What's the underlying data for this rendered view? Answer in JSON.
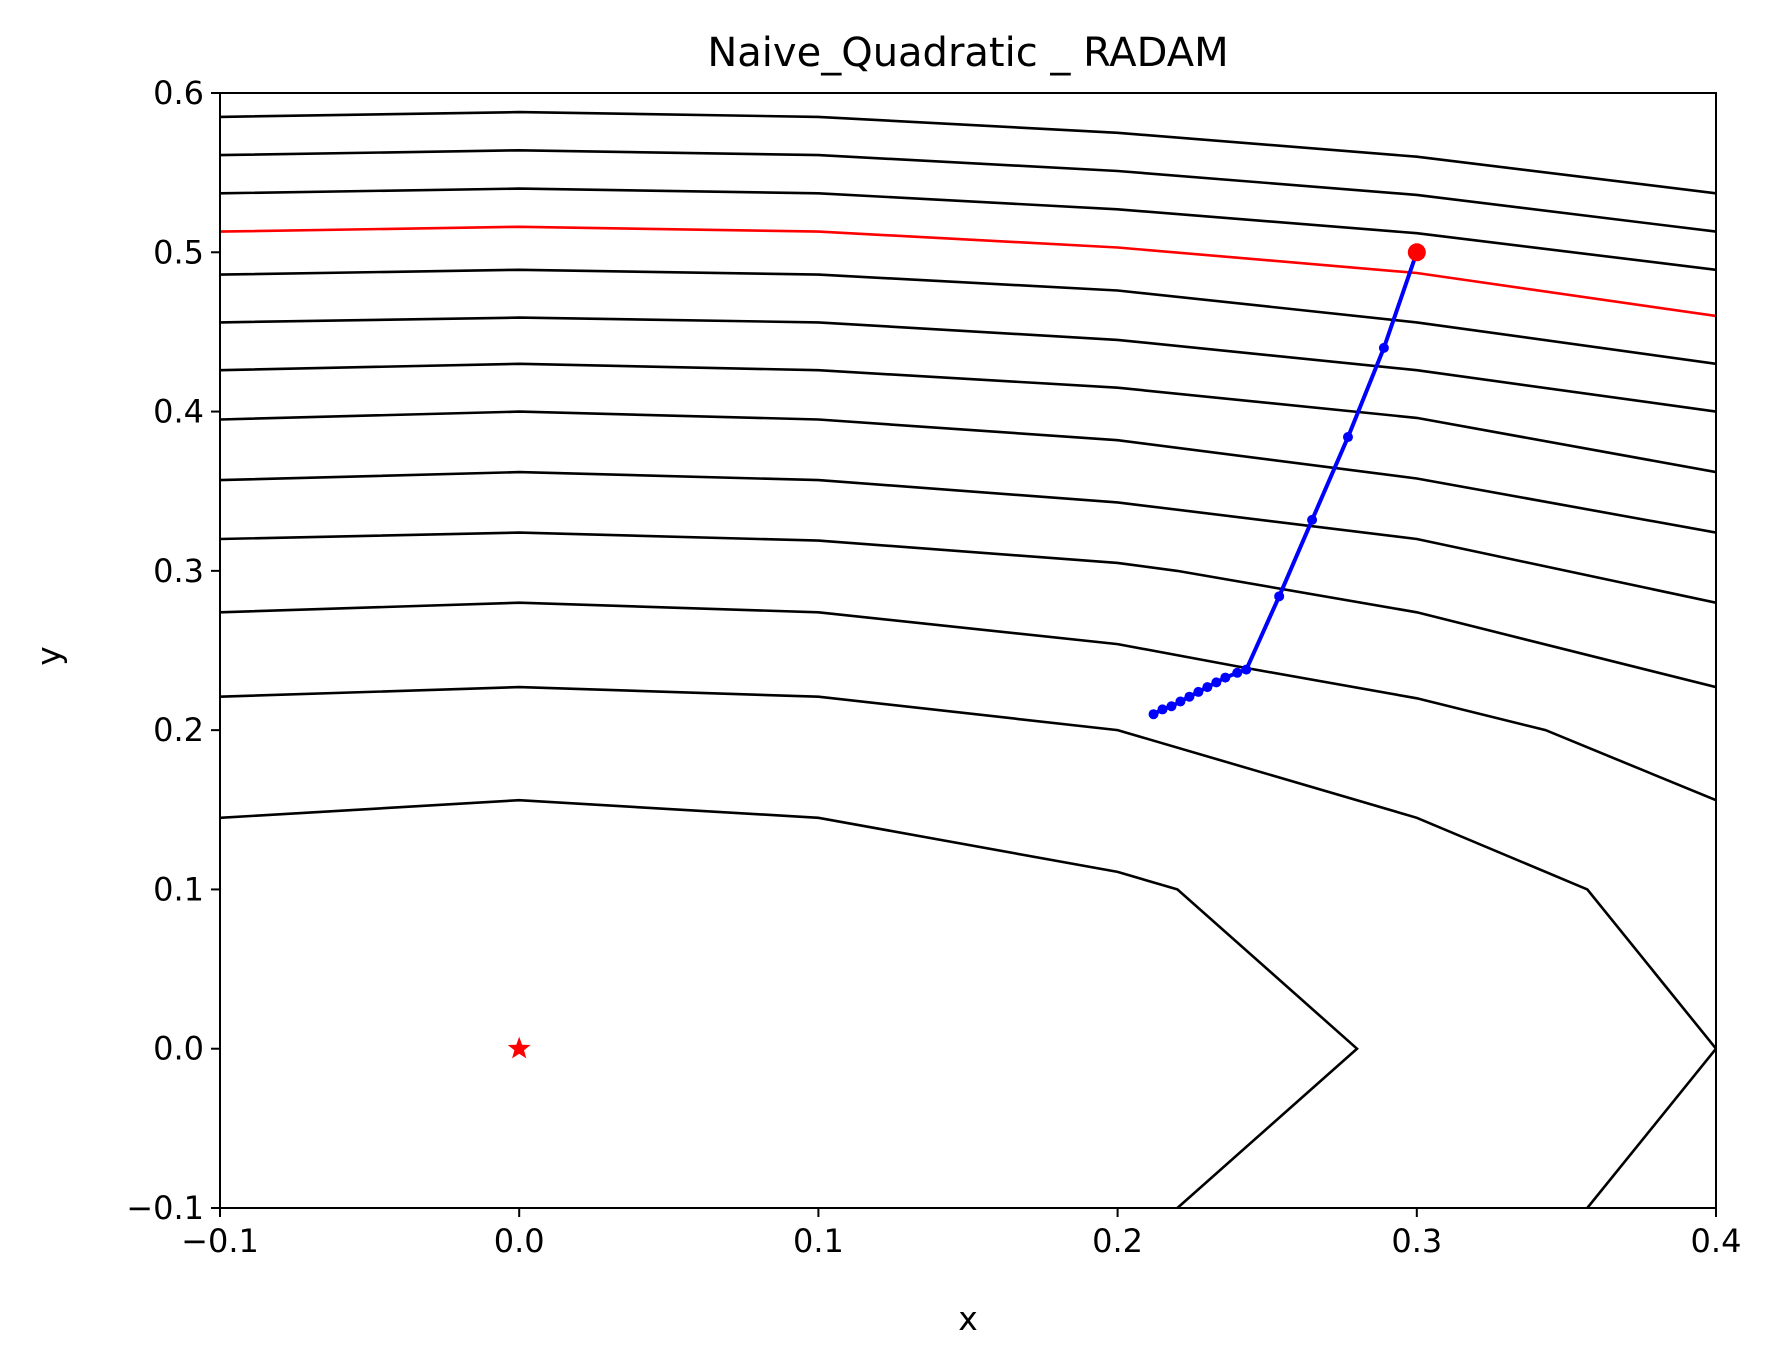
{
  "chart_data": {
    "type": "line",
    "title": "Naive_Quadratic _ RADAM",
    "xlabel": "x",
    "ylabel": "y",
    "xlim": [
      -0.1,
      0.4
    ],
    "ylim": [
      -0.1,
      0.6
    ],
    "x_ticks": [
      -0.1,
      0.0,
      0.1,
      0.2,
      0.3,
      0.4
    ],
    "y_ticks": [
      -0.1,
      0.0,
      0.1,
      0.2,
      0.3,
      0.4,
      0.5,
      0.6
    ],
    "x_tick_labels": [
      "−0.1",
      "0.0",
      "0.1",
      "0.2",
      "0.3",
      "0.4"
    ],
    "y_tick_labels": [
      "−0.1",
      "0.0",
      "0.1",
      "0.2",
      "0.3",
      "0.4",
      "0.5",
      "0.6"
    ],
    "grid": false,
    "colors": {
      "contour": "#000000",
      "start_contour": "#ff0000",
      "path": "#0000ff",
      "start": "#ff0000",
      "optimum": "#ff0000"
    },
    "contours": [
      {
        "color": "black",
        "points": [
          [
            -0.1,
            0.585
          ],
          [
            0.0,
            0.588
          ],
          [
            0.1,
            0.585
          ],
          [
            0.2,
            0.575
          ],
          [
            0.3,
            0.56
          ],
          [
            0.4,
            0.537
          ]
        ]
      },
      {
        "color": "black",
        "points": [
          [
            -0.1,
            0.561
          ],
          [
            0.0,
            0.564
          ],
          [
            0.1,
            0.561
          ],
          [
            0.2,
            0.551
          ],
          [
            0.3,
            0.536
          ],
          [
            0.4,
            0.513
          ]
        ]
      },
      {
        "color": "black",
        "points": [
          [
            -0.1,
            0.537
          ],
          [
            0.0,
            0.54
          ],
          [
            0.1,
            0.537
          ],
          [
            0.2,
            0.527
          ],
          [
            0.3,
            0.512
          ],
          [
            0.4,
            0.489
          ]
        ]
      },
      {
        "color": "red",
        "points": [
          [
            -0.1,
            0.513
          ],
          [
            0.0,
            0.516
          ],
          [
            0.1,
            0.513
          ],
          [
            0.2,
            0.503
          ],
          [
            0.3,
            0.487
          ],
          [
            0.4,
            0.46
          ]
        ]
      },
      {
        "color": "black",
        "points": [
          [
            -0.1,
            0.486
          ],
          [
            0.0,
            0.489
          ],
          [
            0.1,
            0.486
          ],
          [
            0.2,
            0.476
          ],
          [
            0.3,
            0.456
          ],
          [
            0.4,
            0.43
          ]
        ]
      },
      {
        "color": "black",
        "points": [
          [
            -0.1,
            0.456
          ],
          [
            0.0,
            0.459
          ],
          [
            0.1,
            0.456
          ],
          [
            0.2,
            0.445
          ],
          [
            0.3,
            0.426
          ],
          [
            0.4,
            0.4
          ]
        ]
      },
      {
        "color": "black",
        "points": [
          [
            -0.1,
            0.426
          ],
          [
            0.0,
            0.43
          ],
          [
            0.1,
            0.426
          ],
          [
            0.2,
            0.415
          ],
          [
            0.3,
            0.396
          ],
          [
            0.4,
            0.362
          ]
        ]
      },
      {
        "color": "black",
        "points": [
          [
            -0.1,
            0.395
          ],
          [
            0.0,
            0.4
          ],
          [
            0.1,
            0.395
          ],
          [
            0.2,
            0.382
          ],
          [
            0.3,
            0.358
          ],
          [
            0.4,
            0.324
          ]
        ]
      },
      {
        "color": "black",
        "points": [
          [
            -0.1,
            0.357
          ],
          [
            0.0,
            0.362
          ],
          [
            0.1,
            0.357
          ],
          [
            0.2,
            0.343
          ],
          [
            0.3,
            0.32
          ],
          [
            0.4,
            0.28
          ]
        ]
      },
      {
        "color": "black",
        "points": [
          [
            -0.1,
            0.32
          ],
          [
            0.0,
            0.324
          ],
          [
            0.1,
            0.319
          ],
          [
            0.2,
            0.305
          ],
          [
            0.22,
            0.3
          ],
          [
            0.3,
            0.274
          ],
          [
            0.4,
            0.227
          ]
        ]
      },
      {
        "color": "black",
        "points": [
          [
            -0.1,
            0.274
          ],
          [
            0.0,
            0.28
          ],
          [
            0.1,
            0.274
          ],
          [
            0.2,
            0.254
          ],
          [
            0.24,
            0.24
          ],
          [
            0.3,
            0.22
          ],
          [
            0.343,
            0.2
          ],
          [
            0.4,
            0.156
          ]
        ]
      },
      {
        "color": "black",
        "points": [
          [
            -0.1,
            0.221
          ],
          [
            0.0,
            0.227
          ],
          [
            0.1,
            0.221
          ],
          [
            0.2,
            0.2
          ],
          [
            0.3,
            0.145
          ],
          [
            0.357,
            0.1
          ],
          [
            0.4,
            0.0
          ]
        ]
      },
      {
        "color": "black",
        "points": [
          [
            -0.1,
            0.145
          ],
          [
            0.0,
            0.156
          ],
          [
            0.1,
            0.145
          ],
          [
            0.2,
            0.111
          ],
          [
            0.22,
            0.1
          ],
          [
            0.28,
            0.0
          ],
          [
            0.22,
            -0.1
          ]
        ]
      },
      {
        "color": "black",
        "points": [
          [
            0.4,
            0.0
          ],
          [
            0.357,
            -0.1
          ]
        ]
      }
    ],
    "series": [
      {
        "type": "line",
        "color": "blue",
        "points": [
          [
            0.3,
            0.5
          ],
          [
            0.289,
            0.44
          ],
          [
            0.277,
            0.384
          ],
          [
            0.265,
            0.332
          ],
          [
            0.254,
            0.284
          ],
          [
            0.243,
            0.238
          ],
          [
            0.24,
            0.236
          ],
          [
            0.236,
            0.233
          ],
          [
            0.233,
            0.23
          ],
          [
            0.23,
            0.227
          ],
          [
            0.227,
            0.224
          ],
          [
            0.224,
            0.221
          ],
          [
            0.221,
            0.218
          ],
          [
            0.218,
            0.215
          ],
          [
            0.215,
            0.213
          ],
          [
            0.212,
            0.21
          ]
        ]
      }
    ],
    "markers": [
      {
        "name": "start-point",
        "shape": "circle",
        "color": "red",
        "x": 0.3,
        "y": 0.5
      },
      {
        "name": "optimum",
        "shape": "star",
        "color": "red",
        "x": 0.0,
        "y": 0.0
      }
    ]
  }
}
